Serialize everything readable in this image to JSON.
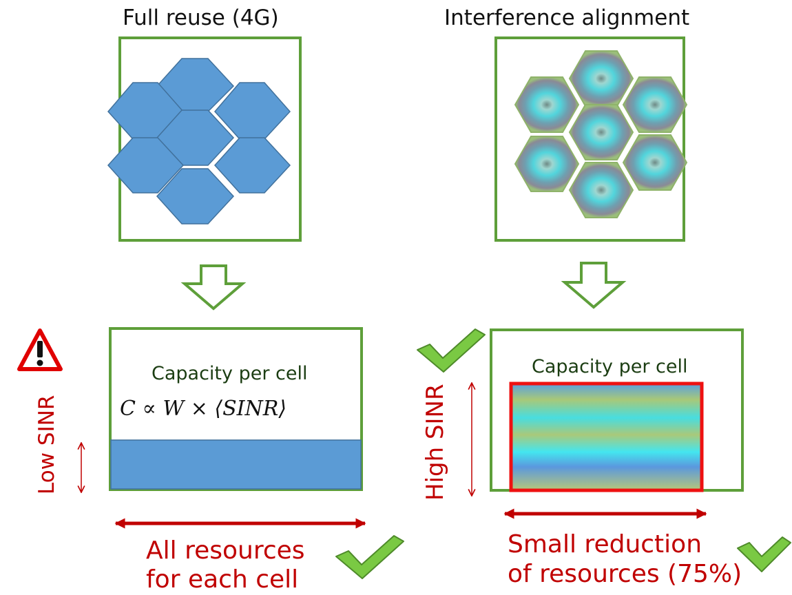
{
  "left": {
    "title": "Full reuse (4G)",
    "capacity_label": "Capacity per cell",
    "formula": "C ∝ W × ⟨SINR⟩",
    "sinr_label": "Low SINR",
    "resources_line1": "All resources",
    "resources_line2": "for each cell"
  },
  "right": {
    "title": "Interference alignment",
    "capacity_label": "Capacity per cell",
    "sinr_label": "High SINR",
    "resources_line1": "Small reduction",
    "resources_line2": "of resources (75%)"
  },
  "colors": {
    "frame_green": "#5e9f3a",
    "cell_blue": "#5b9bd5",
    "accent_red": "#c00000",
    "check_green": "#7ac943"
  },
  "icons": [
    "warning-icon",
    "checkmark-icon"
  ]
}
